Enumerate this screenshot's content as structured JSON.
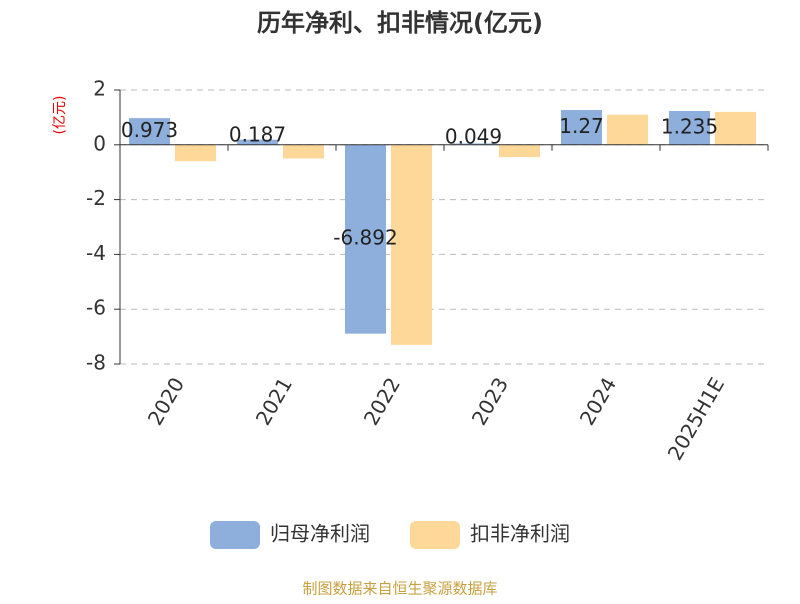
{
  "chart_data": {
    "type": "bar",
    "title": "历年净利、扣非情况(亿元)",
    "y_label": "(亿元)",
    "categories": [
      "2020",
      "2021",
      "2022",
      "2023",
      "2024",
      "2025H1E"
    ],
    "series": [
      {
        "name": "归母净利润",
        "color": "#8eaedc",
        "values": [
          0.973,
          0.187,
          -6.892,
          0.049,
          1.27,
          1.235
        ]
      },
      {
        "name": "扣非净利润",
        "color": "#fdd898",
        "values": [
          -0.6,
          -0.5,
          -7.3,
          -0.45,
          1.1,
          1.2
        ]
      }
    ],
    "ylim": [
      -8,
      2
    ],
    "yticks": [
      -8,
      -6,
      -4,
      -2,
      0,
      2
    ],
    "grid": true,
    "source": "制图数据来自恒生聚源数据库"
  }
}
